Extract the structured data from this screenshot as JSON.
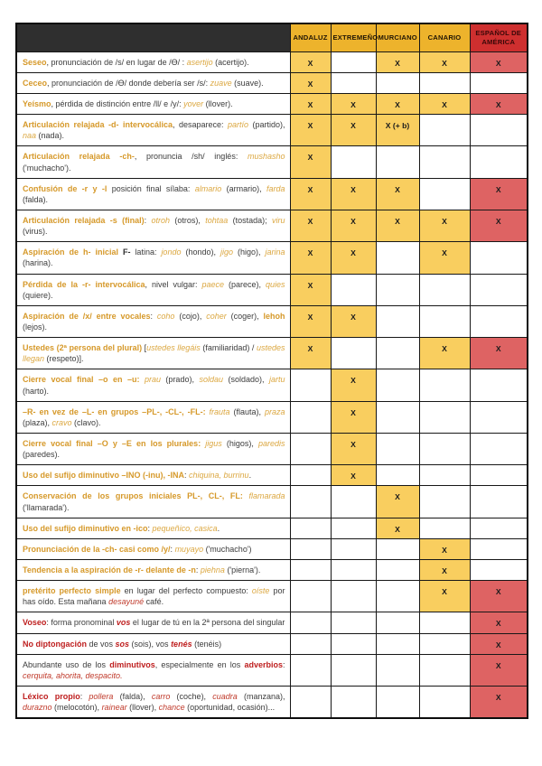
{
  "colors": {
    "header_dark": "#2F2F2F",
    "header_yellow": "#EDB32C",
    "header_red": "#CE2F2F",
    "cell_yellow": "#F9CE5F",
    "cell_red": "#DE6363",
    "accent_orange_bold": "#D6992A",
    "accent_orange_italic": "#DCA842",
    "accent_red": "#BE1E1E",
    "body_text": "#3C3C3C"
  },
  "table": {
    "columns": [
      "ANDALUZ",
      "EXTREMEÑO",
      "MURCIANO",
      "CANARIO",
      "ESPAÑOL DE AMÉRICA"
    ],
    "rows": [
      {
        "marks": [
          "X",
          "",
          "X",
          "X",
          "X"
        ],
        "segments": [
          {
            "t": "Seseo",
            "s": "bo"
          },
          {
            "t": ", pronunciación de /s/ en lugar de /Ɵ/ : ",
            "s": "n"
          },
          {
            "t": "asertijo",
            "s": "io"
          },
          {
            "t": " (acertijo).",
            "s": "n"
          }
        ]
      },
      {
        "marks": [
          "X",
          "",
          "",
          "",
          ""
        ],
        "segments": [
          {
            "t": "Ceceo",
            "s": "bo"
          },
          {
            "t": ", pronunciación de /Ɵ/ donde debería ser /s/: ",
            "s": "n"
          },
          {
            "t": "zuave",
            "s": "io"
          },
          {
            "t": " (suave).",
            "s": "n"
          }
        ]
      },
      {
        "marks": [
          "X",
          "X",
          "X",
          "X",
          "X"
        ],
        "segments": [
          {
            "t": "Yeísmo",
            "s": "bo"
          },
          {
            "t": ", pérdida de distinción entre /ll/ e /y/: ",
            "s": "n"
          },
          {
            "t": "yover",
            "s": "io"
          },
          {
            "t": " (llover).",
            "s": "n"
          }
        ]
      },
      {
        "marks": [
          "X",
          "X",
          "X (+ b)",
          "",
          ""
        ],
        "segments": [
          {
            "t": "Articulación relajada -d- intervocálica",
            "s": "bo"
          },
          {
            "t": ", desaparece: ",
            "s": "n"
          },
          {
            "t": "partío",
            "s": "io"
          },
          {
            "t": " (partido), ",
            "s": "n"
          },
          {
            "t": "naa",
            "s": "io"
          },
          {
            "t": " (nada).",
            "s": "n"
          }
        ]
      },
      {
        "marks": [
          "X",
          "",
          "",
          "",
          ""
        ],
        "segments": [
          {
            "t": "Articulación relajada -ch-",
            "s": "bo"
          },
          {
            "t": ", pronuncia /sh/ inglés: ",
            "s": "n"
          },
          {
            "t": "mushasho",
            "s": "io"
          },
          {
            "t": " ('muchacho').",
            "s": "n"
          }
        ]
      },
      {
        "marks": [
          "X",
          "X",
          "X",
          "",
          "X"
        ],
        "segments": [
          {
            "t": "Confusión de -r y -l",
            "s": "bo"
          },
          {
            "t": " posición final sílaba: ",
            "s": "n"
          },
          {
            "t": "almario",
            "s": "io"
          },
          {
            "t": " (armario), ",
            "s": "n"
          },
          {
            "t": "farda",
            "s": "io"
          },
          {
            "t": " (falda).",
            "s": "n"
          }
        ]
      },
      {
        "marks": [
          "X",
          "X",
          "X",
          "X",
          "X"
        ],
        "segments": [
          {
            "t": "Articulación relajada -s (final)",
            "s": "bo"
          },
          {
            "t": ": ",
            "s": "n"
          },
          {
            "t": "otroh",
            "s": "io"
          },
          {
            "t": " (otros), ",
            "s": "n"
          },
          {
            "t": "tohtaa",
            "s": "io"
          },
          {
            "t": " (tostada); ",
            "s": "n"
          },
          {
            "t": "viru",
            "s": "io"
          },
          {
            "t": " (virus).",
            "s": "n"
          }
        ]
      },
      {
        "marks": [
          "X",
          "X",
          "",
          "X",
          ""
        ],
        "segments": [
          {
            "t": "Aspiración de h- inicial",
            "s": "bo"
          },
          {
            "t": " ",
            "s": "n"
          },
          {
            "t": "F-",
            "s": "bk"
          },
          {
            "t": " latina: ",
            "s": "n"
          },
          {
            "t": "jondo",
            "s": "io"
          },
          {
            "t": " (hondo), ",
            "s": "n"
          },
          {
            "t": "jigo",
            "s": "io"
          },
          {
            "t": " (higo), ",
            "s": "n"
          },
          {
            "t": "jarina",
            "s": "io"
          },
          {
            "t": " (harina).",
            "s": "n"
          }
        ]
      },
      {
        "marks": [
          "X",
          "",
          "",
          "",
          ""
        ],
        "segments": [
          {
            "t": "Pérdida de la -r- intervocálica",
            "s": "bo"
          },
          {
            "t": ", nivel vulgar: ",
            "s": "n"
          },
          {
            "t": "paece",
            "s": "io"
          },
          {
            "t": " (parece), ",
            "s": "n"
          },
          {
            "t": "quies",
            "s": "io"
          },
          {
            "t": " (quiere).",
            "s": "n"
          }
        ]
      },
      {
        "marks": [
          "X",
          "X",
          "",
          "",
          ""
        ],
        "segments": [
          {
            "t": "Aspiración de /x/ entre vocales",
            "s": "bo"
          },
          {
            "t": ": ",
            "s": "n"
          },
          {
            "t": "coho",
            "s": "io"
          },
          {
            "t": " (cojo), ",
            "s": "n"
          },
          {
            "t": "coher",
            "s": "io"
          },
          {
            "t": " (coger), ",
            "s": "n"
          },
          {
            "t": "lehoh",
            "s": "bo"
          },
          {
            "t": " (lejos).",
            "s": "n"
          }
        ]
      },
      {
        "marks": [
          "X",
          "",
          "",
          "X",
          "X"
        ],
        "segments": [
          {
            "t": "Ustedes (2ª persona del plural)",
            "s": "bo"
          },
          {
            "t": " [",
            "s": "n"
          },
          {
            "t": "ustedes llegáis",
            "s": "io"
          },
          {
            "t": " (familiaridad) / ",
            "s": "n"
          },
          {
            "t": "ustedes llegan",
            "s": "io"
          },
          {
            "t": " (respeto)].",
            "s": "n"
          }
        ]
      },
      {
        "marks": [
          "",
          "X",
          "",
          "",
          ""
        ],
        "segments": [
          {
            "t": "Cierre vocal final –o en –u:",
            "s": "bo"
          },
          {
            "t": " ",
            "s": "n"
          },
          {
            "t": "prau",
            "s": "io"
          },
          {
            "t": " (prado), ",
            "s": "n"
          },
          {
            "t": "soldau",
            "s": "io"
          },
          {
            "t": " (soldado), ",
            "s": "n"
          },
          {
            "t": "jartu",
            "s": "io"
          },
          {
            "t": " (harto).",
            "s": "n"
          }
        ]
      },
      {
        "marks": [
          "",
          "X",
          "",
          "",
          ""
        ],
        "segments": [
          {
            "t": "–R- en vez de –L- en grupos –PL-, -CL-, -FL-:",
            "s": "bo"
          },
          {
            "t": " ",
            "s": "n"
          },
          {
            "t": "frauta",
            "s": "io"
          },
          {
            "t": " (flauta), ",
            "s": "n"
          },
          {
            "t": "praza",
            "s": "io"
          },
          {
            "t": " (plaza), ",
            "s": "n"
          },
          {
            "t": "cravo",
            "s": "io"
          },
          {
            "t": " (clavo).",
            "s": "n"
          }
        ]
      },
      {
        "marks": [
          "",
          "X",
          "",
          "",
          ""
        ],
        "segments": [
          {
            "t": "Cierre vocal final –O y –E en los plurales:",
            "s": "bo"
          },
          {
            "t": " ",
            "s": "n"
          },
          {
            "t": "jigus",
            "s": "io"
          },
          {
            "t": " (higos), ",
            "s": "n"
          },
          {
            "t": "paredis",
            "s": "io"
          },
          {
            "t": " (paredes).",
            "s": "n"
          }
        ]
      },
      {
        "marks": [
          "",
          "X",
          "",
          "",
          ""
        ],
        "segments": [
          {
            "t": "Uso del sufijo diminutivo –INO (-inu), -INA",
            "s": "bo"
          },
          {
            "t": ": ",
            "s": "n"
          },
          {
            "t": "chiquina, burrinu",
            "s": "io"
          },
          {
            "t": ".",
            "s": "n"
          }
        ]
      },
      {
        "marks": [
          "",
          "",
          "X",
          "",
          ""
        ],
        "segments": [
          {
            "t": "Conservación de los grupos iniciales PL-, CL-, FL:",
            "s": "bo"
          },
          {
            "t": " ",
            "s": "n"
          },
          {
            "t": "flamarada",
            "s": "io"
          },
          {
            "t": " ('llamarada').",
            "s": "n"
          }
        ]
      },
      {
        "marks": [
          "",
          "",
          "X",
          "",
          ""
        ],
        "segments": [
          {
            "t": "Uso del sufijo diminutivo en -ico",
            "s": "bo"
          },
          {
            "t": ": ",
            "s": "n"
          },
          {
            "t": "pequeñico, casica",
            "s": "io"
          },
          {
            "t": ".",
            "s": "n"
          }
        ]
      },
      {
        "marks": [
          "",
          "",
          "",
          "X",
          ""
        ],
        "segments": [
          {
            "t": "Pronunciación de la -ch- casi como /y/",
            "s": "bo"
          },
          {
            "t": ": ",
            "s": "n"
          },
          {
            "t": "muyayo",
            "s": "io"
          },
          {
            "t": " ('muchacho')",
            "s": "n"
          }
        ]
      },
      {
        "marks": [
          "",
          "",
          "",
          "X",
          ""
        ],
        "segments": [
          {
            "t": "Tendencia a la aspiración de -r- delante de -n",
            "s": "bo"
          },
          {
            "t": ": ",
            "s": "n"
          },
          {
            "t": "piehna",
            "s": "io"
          },
          {
            "t": " ('pierna').",
            "s": "n"
          }
        ]
      },
      {
        "marks": [
          "",
          "",
          "",
          "X",
          "X"
        ],
        "segments": [
          {
            "t": "pretérito perfecto simple",
            "s": "bo"
          },
          {
            "t": " en lugar del perfecto compuesto: ",
            "s": "n"
          },
          {
            "t": "oíste",
            "s": "io"
          },
          {
            "t": " por has oído. Esta mañana ",
            "s": "n"
          },
          {
            "t": "desayuné",
            "s": "ir"
          },
          {
            "t": " café.",
            "s": "n"
          }
        ]
      },
      {
        "marks": [
          "",
          "",
          "",
          "",
          "X"
        ],
        "segments": [
          {
            "t": "Voseo",
            "s": "br"
          },
          {
            "t": ": forma pronominal ",
            "s": "n"
          },
          {
            "t": "vos",
            "s": "bir"
          },
          {
            "t": " el lugar de tú en la 2ª persona del singular",
            "s": "n"
          }
        ]
      },
      {
        "marks": [
          "",
          "",
          "",
          "",
          "X"
        ],
        "segments": [
          {
            "t": "No diptongación",
            "s": "br"
          },
          {
            "t": " de vos ",
            "s": "n"
          },
          {
            "t": "sos",
            "s": "bir"
          },
          {
            "t": " (sois), vos ",
            "s": "n"
          },
          {
            "t": "tenés",
            "s": "bir"
          },
          {
            "t": " (tenéis)",
            "s": "n"
          }
        ]
      },
      {
        "marks": [
          "",
          "",
          "",
          "",
          "X"
        ],
        "segments": [
          {
            "t": "Abundante uso de los ",
            "s": "n"
          },
          {
            "t": "diminutivos",
            "s": "br"
          },
          {
            "t": ", especialmente en los ",
            "s": "n"
          },
          {
            "t": "adverbios",
            "s": "br"
          },
          {
            "t": ": ",
            "s": "n"
          },
          {
            "t": "cerquita, ahorita, despacito.",
            "s": "ir"
          }
        ]
      },
      {
        "marks": [
          "",
          "",
          "",
          "",
          "X"
        ],
        "segments": [
          {
            "t": "Léxico propio",
            "s": "br"
          },
          {
            "t": ": ",
            "s": "n"
          },
          {
            "t": "pollera",
            "s": "ir"
          },
          {
            "t": " (falda), ",
            "s": "n"
          },
          {
            "t": "carro",
            "s": "ir"
          },
          {
            "t": " (coche), ",
            "s": "n"
          },
          {
            "t": "cuadra",
            "s": "ir"
          },
          {
            "t": " (manzana), ",
            "s": "n"
          },
          {
            "t": "durazno",
            "s": "ir"
          },
          {
            "t": " (melocotón), ",
            "s": "n"
          },
          {
            "t": "rainear",
            "s": "ir"
          },
          {
            "t": " (llover), ",
            "s": "n"
          },
          {
            "t": "chance",
            "s": "ir"
          },
          {
            "t": " (oportunidad, ocasión)...",
            "s": "n"
          }
        ]
      }
    ]
  }
}
